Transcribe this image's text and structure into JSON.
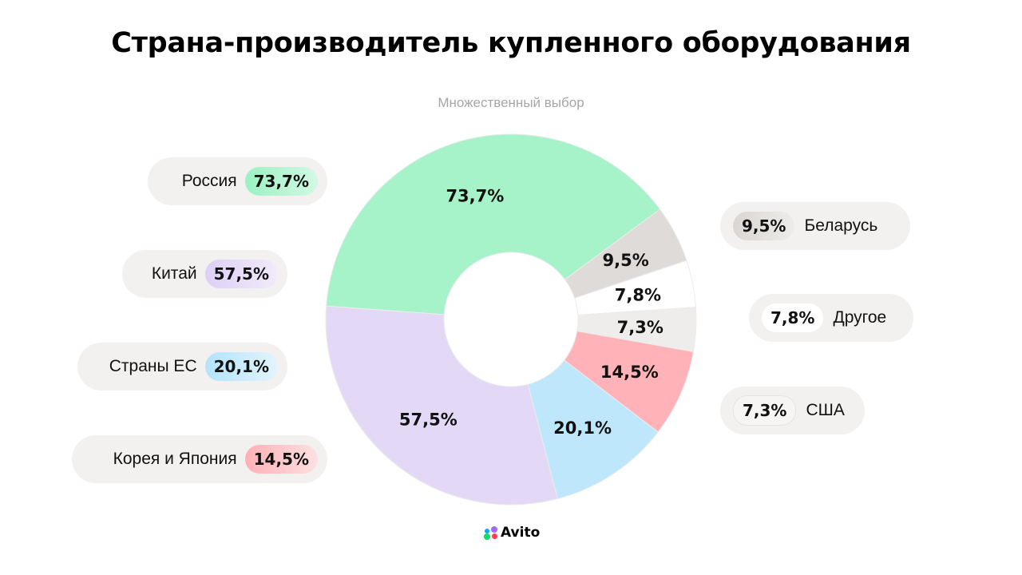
{
  "title": "Страна-производитель купленного оборудования",
  "subtitle": "Множественный выбор",
  "logo": {
    "text": "Avito"
  },
  "chart_data": {
    "type": "pie",
    "variant": "donut",
    "title": "Страна-производитель купленного оборудования",
    "subtitle": "Множественный выбор",
    "labels": [
      "Россия",
      "Беларусь",
      "Другое",
      "США",
      "Корея и Япония",
      "Страны ЕС",
      "Китай"
    ],
    "values": [
      73.7,
      9.5,
      7.8,
      7.3,
      14.5,
      20.1,
      57.5
    ],
    "value_labels": [
      "73,7%",
      "9,5%",
      "7,8%",
      "7,3%",
      "14,5%",
      "20,1%",
      "57,5%"
    ],
    "colors": [
      "#a6f2c9",
      "#dedbd8",
      "#ffffff",
      "#efedeb",
      "#ffb3b8",
      "#bfe7fb",
      "#e4d8f7"
    ],
    "legend": [
      {
        "side": "left",
        "name": "Россия",
        "value": "73,7%",
        "color": "#a6f2c9"
      },
      {
        "side": "left",
        "name": "Китай",
        "value": "57,5%",
        "color": "#e4d8f7"
      },
      {
        "side": "left",
        "name": "Страны ЕС",
        "value": "20,1%",
        "color": "#bfe7fb"
      },
      {
        "side": "left",
        "name": "Корея и Япония",
        "value": "14,5%",
        "color": "#ffc4c8"
      },
      {
        "side": "right",
        "name": "Беларусь",
        "value": "9,5%",
        "color": "#e3e1df"
      },
      {
        "side": "right",
        "name": "Другое",
        "value": "7,8%",
        "color": "#ffffff"
      },
      {
        "side": "right",
        "name": "США",
        "value": "7,3%",
        "color": "#f5f4f3"
      }
    ]
  }
}
